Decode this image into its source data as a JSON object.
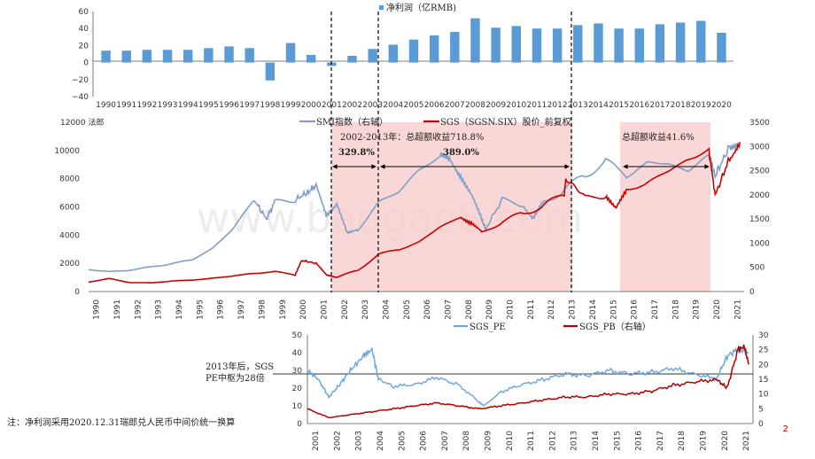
{
  "footnote": "注：净利润采用2020.12.31瑞郎兑人民币中间价统一换算",
  "page_number": "2",
  "watermark": "www.baogao8.com",
  "colors": {
    "bar": "#5b9bd5",
    "smi": "#7f9fc8",
    "sgs": "#cc0000",
    "shade": "#f8c9c9"
  },
  "chart_data": [
    {
      "type": "bar",
      "legend": [
        "净利润（亿RMB)"
      ],
      "categories": [
        "1990",
        "1991",
        "1992",
        "1993",
        "1994",
        "1995",
        "1996",
        "1997",
        "1998",
        "1999",
        "2000",
        "2001",
        "2002",
        "2003",
        "2004",
        "2005",
        "2006",
        "2007",
        "2008",
        "2009",
        "2010",
        "2011",
        "2012",
        "2013",
        "2014",
        "2015",
        "2016",
        "2017",
        "2018",
        "2019",
        "2020"
      ],
      "series": [
        {
          "name": "净利润（亿RMB)",
          "values": [
            14,
            14,
            15,
            15,
            15,
            17,
            19,
            17,
            -21,
            23,
            9,
            -4,
            8,
            16,
            21,
            27,
            32,
            36,
            52,
            41,
            43,
            40,
            40,
            44,
            46,
            40,
            40,
            45,
            47,
            49,
            35
          ]
        }
      ],
      "ylim": [
        -40,
        60
      ],
      "yticks": [
        "60",
        "40",
        "20",
        "0",
        "−20",
        "−40"
      ]
    },
    {
      "type": "line",
      "legend": [
        "SMI指数（右轴）",
        "SGS（SGSN.SIX）股价_前复权"
      ],
      "yticks_left": [
        "12000 法郎",
        "10000",
        "8000",
        "6000",
        "4000",
        "2000",
        "0"
      ],
      "yticks_right": [
        "3500",
        "3000",
        "2500",
        "2000",
        "1500",
        "1000",
        "500",
        "0"
      ],
      "ylim_left": [
        0,
        12000
      ],
      "ylim_right": [
        0,
        3500
      ],
      "x_categories": [
        "1990",
        "1991",
        "1992",
        "1993",
        "1994",
        "1995",
        "1996",
        "1997",
        "1998",
        "1999",
        "2000",
        "2001",
        "2002",
        "2003",
        "2004",
        "2005",
        "2006",
        "2007",
        "2008",
        "2009",
        "2010",
        "2011",
        "2012",
        "2013",
        "2014",
        "2015",
        "2016",
        "2017",
        "2018",
        "2019",
        "2020",
        "2021"
      ],
      "series": [
        {
          "name": "SMI指数（右轴）",
          "axis": "right",
          "x": [
            1990,
            1991,
            1992,
            1993,
            1994,
            1995,
            1996,
            1997,
            1998,
            1998.6,
            1999,
            2000,
            2000.6,
            2001,
            2001.5,
            2002,
            2002.5,
            2003,
            2004,
            2005,
            2006,
            2007,
            2007.5,
            2008,
            2008.5,
            2009,
            2009.2,
            2010,
            2011,
            2011.5,
            2012,
            2013,
            2014,
            2015,
            2016,
            2017,
            2018,
            2019,
            2020,
            2020.3,
            2021,
            2021.5
          ],
          "values": [
            470,
            400,
            450,
            500,
            580,
            650,
            900,
            1300,
            1900,
            1500,
            1850,
            1900,
            2050,
            2200,
            1600,
            1800,
            1200,
            1300,
            1800,
            2100,
            2500,
            2800,
            2700,
            2400,
            2000,
            1500,
            1300,
            1900,
            1800,
            1500,
            1850,
            2100,
            2400,
            2700,
            2400,
            2650,
            2650,
            2500,
            2800,
            2400,
            3000,
            3000
          ]
        },
        {
          "name": "SGS（SGSN.SIX）股价_前复权",
          "axis": "left",
          "x": [
            1990,
            1991,
            1992,
            1993,
            1994,
            1995,
            1996,
            1997,
            1998,
            1999,
            2000,
            2000.3,
            2001,
            2001.5,
            2002,
            2003,
            2004,
            2005,
            2006,
            2007,
            2008,
            2008.5,
            2009,
            2010,
            2011,
            2012,
            2013,
            2013.1,
            2014,
            2015,
            2015.5,
            2016,
            2017,
            2018,
            2019,
            2020,
            2020.3,
            2021,
            2021.5
          ],
          "values": [
            700,
            900,
            650,
            600,
            750,
            800,
            950,
            1100,
            1300,
            1400,
            1200,
            2200,
            2000,
            1200,
            1000,
            1500,
            2600,
            3000,
            3500,
            4600,
            5300,
            4900,
            4200,
            4900,
            5600,
            6000,
            7000,
            8100,
            6600,
            6800,
            5800,
            7200,
            7700,
            8500,
            9400,
            10000,
            6800,
            9500,
            10600
          ]
        }
      ],
      "annotations": [
        {
          "text": "2002-2013年：总超额收益718.8%"
        },
        {
          "text": "329.8%"
        },
        {
          "text": "389.0%"
        },
        {
          "text": "总超额收益41.6%"
        }
      ]
    },
    {
      "type": "line",
      "legend": [
        "SGS_PE",
        "SGS_PB（右轴）"
      ],
      "yticks_left": [
        "50",
        "40",
        "30",
        "20",
        "10",
        "0"
      ],
      "yticks_right": [
        "30",
        "25",
        "20",
        "15",
        "10",
        "5",
        "0"
      ],
      "ylim_left": [
        0,
        50
      ],
      "ylim_right": [
        0,
        30
      ],
      "x_categories": [
        "2001",
        "2002",
        "2003",
        "2004",
        "2005",
        "2006",
        "2007",
        "2008",
        "2009",
        "2010",
        "2011",
        "2012",
        "2013",
        "2014",
        "2015",
        "2016",
        "2017",
        "2018",
        "2019",
        "2020",
        "2021"
      ],
      "annotation": "2013年后，SGS PE中枢为28倍",
      "reference_line_pe": 28,
      "series": [
        {
          "name": "SGS_PE",
          "axis": "left",
          "x": [
            2001,
            2001.5,
            2002,
            2002.5,
            2003,
            2003.6,
            2004,
            2004.3,
            2005,
            2006,
            2007,
            2008,
            2009,
            2009.2,
            2010,
            2011,
            2012,
            2013,
            2014,
            2015,
            2016,
            2017,
            2018,
            2019,
            2020,
            2020.5,
            2021,
            2021.5
          ],
          "values": [
            30,
            25,
            15,
            22,
            30,
            38,
            42,
            25,
            21,
            22,
            26,
            22,
            12,
            10,
            18,
            22,
            25,
            28,
            27,
            30,
            28,
            29,
            31,
            28,
            25,
            38,
            42,
            40
          ]
        },
        {
          "name": "SGS_PB（右轴）",
          "axis": "right",
          "x": [
            2001,
            2002,
            2003,
            2004,
            2005,
            2006,
            2007,
            2008,
            2009,
            2010,
            2011,
            2012,
            2013,
            2014,
            2015,
            2016,
            2017,
            2018,
            2019,
            2020,
            2020.5,
            2021,
            2021.3,
            2021.5
          ],
          "values": [
            5,
            2,
            3,
            4,
            5,
            6,
            7,
            6,
            5,
            6,
            7,
            8,
            9,
            9,
            10,
            10,
            11,
            13,
            14,
            15,
            12,
            25,
            26,
            20
          ]
        }
      ]
    }
  ]
}
